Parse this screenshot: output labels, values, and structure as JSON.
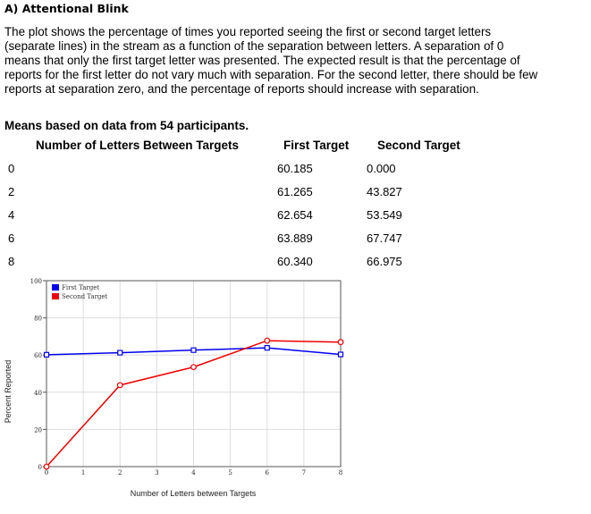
{
  "section": {
    "heading": "A) Attentional Blink",
    "description": "The plot shows the percentage of times you reported seeing the first or second target letters (separate lines) in the stream as a function of the separation between letters. A separation of 0 means that only the first target letter was presented. The expected result is that the percentage of reports for the first letter do not vary much with separation. For the second letter, there should be few reports at separation zero, and the percentage of reports should increase with separation.",
    "means_note": "Means based on data from 54 participants."
  },
  "table": {
    "headers": [
      "Number of Letters Between Targets",
      "First Target",
      "Second Target"
    ],
    "rows": [
      [
        "0",
        "60.185",
        "0.000"
      ],
      [
        "2",
        "61.265",
        "43.827"
      ],
      [
        "4",
        "62.654",
        "53.549"
      ],
      [
        "6",
        "63.889",
        "67.747"
      ],
      [
        "8",
        "60.340",
        "66.975"
      ]
    ]
  },
  "chart_data": {
    "type": "line",
    "xlabel": "Number of Letters between Targets",
    "ylabel": "Percent Reported",
    "xlim": [
      0,
      8
    ],
    "ylim": [
      0,
      100
    ],
    "xticks": [
      0,
      1,
      2,
      3,
      4,
      5,
      6,
      7,
      8
    ],
    "yticks": [
      0,
      20,
      40,
      60,
      80,
      100
    ],
    "grid": true,
    "legend_position": "top-left",
    "series": [
      {
        "name": "First Target",
        "color": "#0000ee",
        "x": [
          0,
          2,
          4,
          6,
          8
        ],
        "y": [
          60.185,
          61.265,
          62.654,
          63.889,
          60.34
        ]
      },
      {
        "name": "Second Target",
        "color": "#ee0000",
        "x": [
          0,
          2,
          4,
          6,
          8
        ],
        "y": [
          0.0,
          43.827,
          53.549,
          67.747,
          66.975
        ]
      }
    ]
  }
}
